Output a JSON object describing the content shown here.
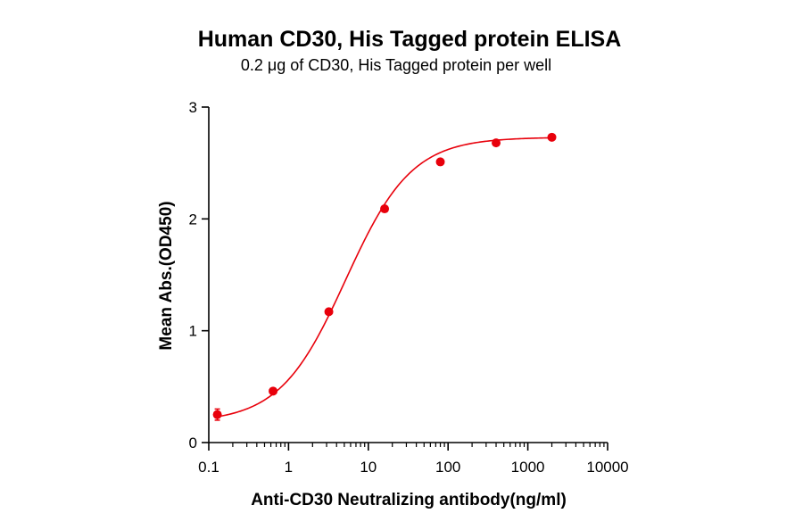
{
  "chart_data": {
    "type": "scatter",
    "title": "Human CD30, His Tagged protein ELISA",
    "subtitle": "0.2 μg of CD30, His Tagged protein per well",
    "xlabel": "Anti-CD30 Neutralizing antibody(ng/ml)",
    "ylabel": "Mean Abs.(OD450)",
    "x_scale": "log",
    "xlim": [
      0.1,
      10000
    ],
    "ylim": [
      0,
      3
    ],
    "x_ticks": [
      0.1,
      1,
      10,
      100,
      1000,
      10000
    ],
    "x_tick_labels": [
      "0.1",
      "1",
      "10",
      "100",
      "1000",
      "10000"
    ],
    "y_ticks": [
      0,
      1,
      2,
      3
    ],
    "y_tick_labels": [
      "0",
      "1",
      "2",
      "3"
    ],
    "grid": false,
    "legend": "none",
    "color": "#e8000b",
    "series": [
      {
        "x": [
          0.128,
          0.64,
          3.2,
          16,
          80,
          400,
          2000
        ],
        "y": [
          0.25,
          0.46,
          1.17,
          2.09,
          2.51,
          2.68,
          2.73
        ],
        "error": [
          0.05,
          0.02,
          0.02,
          0.01,
          0.02,
          0.02,
          0.01
        ],
        "fit": "4PL sigmoid"
      }
    ]
  }
}
